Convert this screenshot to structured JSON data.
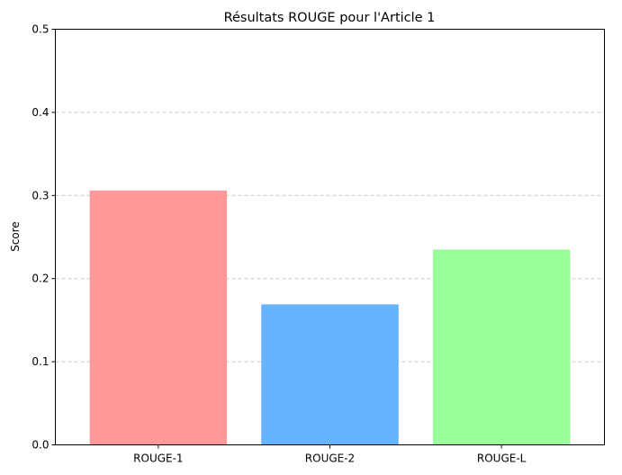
{
  "chart_data": {
    "type": "bar",
    "title": "Résultats ROUGE pour l'Article 1",
    "xlabel": "",
    "ylabel": "Score",
    "categories": [
      "ROUGE-1",
      "ROUGE-2",
      "ROUGE-L"
    ],
    "values": [
      0.306,
      0.169,
      0.235
    ],
    "colors": [
      "#ff9999",
      "#66b3ff",
      "#99ff99"
    ],
    "ylim": [
      0,
      0.5
    ],
    "yticks": [
      "0.0",
      "0.1",
      "0.2",
      "0.3",
      "0.4",
      "0.5"
    ],
    "grid": "horizontal dashed",
    "grid_color": "#c8c8c8"
  }
}
